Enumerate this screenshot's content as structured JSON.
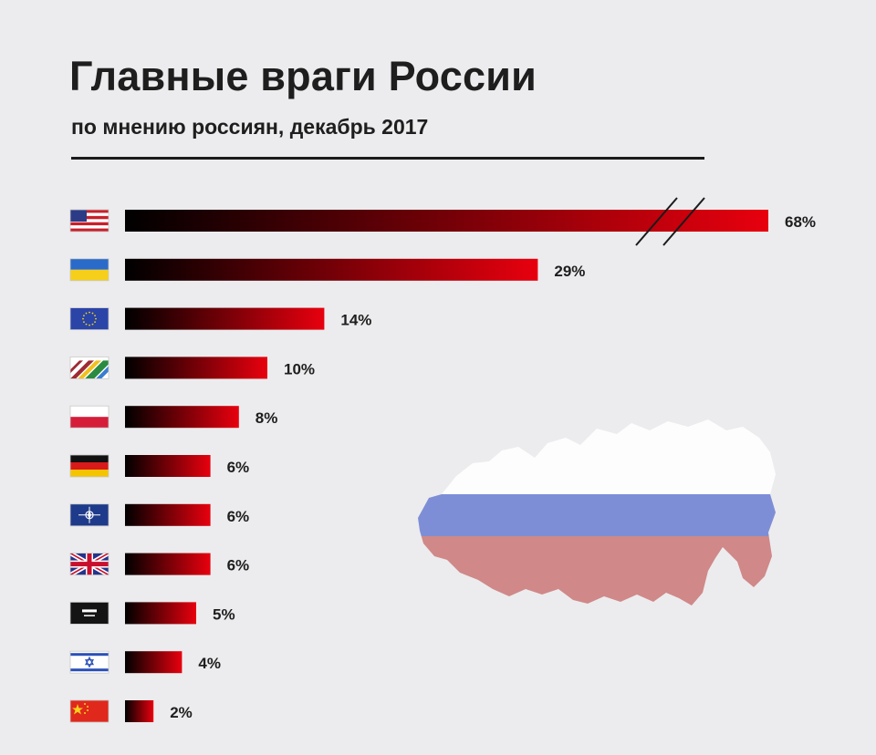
{
  "title": "Главные враги России",
  "subtitle": "по мнению россиян, декабрь 2017",
  "colors": {
    "bar_start": "#000000",
    "bar_end": "#e8000e",
    "text": "#1e1e1e",
    "background": "#ececee"
  },
  "chart_data": {
    "type": "bar",
    "orientation": "horizontal",
    "axis_break_on_first_bar": true,
    "categories": [
      "США",
      "Украина",
      "ЕС",
      "Прибалтика",
      "Польша",
      "Германия",
      "НАТО",
      "Великобритания",
      "Саудовская Аравия",
      "Израиль",
      "Китай"
    ],
    "category_icons": [
      "flag-usa-icon",
      "flag-ukraine-icon",
      "flag-eu-icon",
      "flag-baltic-icon",
      "flag-poland-icon",
      "flag-germany-icon",
      "flag-nato-icon",
      "flag-uk-icon",
      "flag-saudi-icon",
      "flag-israel-icon",
      "flag-china-icon"
    ],
    "values": [
      68,
      29,
      14,
      10,
      8,
      6,
      6,
      6,
      5,
      4,
      2
    ],
    "labels": [
      "68%",
      "29%",
      "14%",
      "10%",
      "8%",
      "6%",
      "6%",
      "6%",
      "5%",
      "4%",
      "2%"
    ]
  }
}
